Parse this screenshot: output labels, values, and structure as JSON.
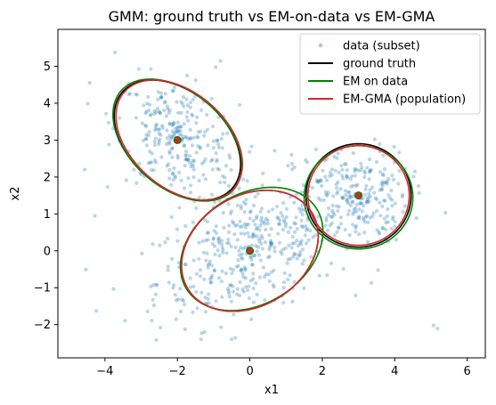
{
  "chart_data": {
    "type": "scatter",
    "title": "GMM: ground truth vs EM-on-data vs EM-GMA",
    "xlabel": "x1",
    "ylabel": "x2",
    "xlim": [
      -5.3,
      6.5
    ],
    "ylim": [
      -2.9,
      6.0
    ],
    "xticks": [
      -4,
      -2,
      0,
      2,
      4,
      6
    ],
    "yticks": [
      -2,
      -1,
      0,
      1,
      2,
      3,
      4,
      5
    ],
    "grid": false,
    "legend_position": "top-right",
    "point_color": "#1f77b4",
    "series": [
      {
        "name": "data (subset)",
        "kind": "scatter",
        "color": "#1f77b4",
        "clusters": [
          {
            "center": [
              0.0,
              0.0
            ],
            "sx": 1.3,
            "sy": 0.95,
            "rho": 0.45,
            "n": 420
          },
          {
            "center": [
              -2.0,
              3.0
            ],
            "sx": 0.85,
            "sy": 0.8,
            "rho": -0.35,
            "n": 270
          },
          {
            "center": [
              3.0,
              1.5
            ],
            "sx": 0.7,
            "sy": 0.65,
            "rho": 0.0,
            "n": 230
          }
        ],
        "scatter_background": 25
      },
      {
        "name": "ground truth",
        "kind": "ellipse",
        "color": "#000000",
        "ellipses": [
          {
            "center": [
              0.0,
              0.0
            ],
            "width": 4.0,
            "height": 3.0,
            "angle": 30
          },
          {
            "center": [
              -2.0,
              3.0
            ],
            "width": 4.0,
            "height": 2.6,
            "angle": -40
          },
          {
            "center": [
              3.0,
              1.5
            ],
            "width": 2.9,
            "height": 2.8,
            "angle": 0
          }
        ]
      },
      {
        "name": "EM on data",
        "kind": "ellipse",
        "color": "#008000",
        "ellipses": [
          {
            "center": [
              0.05,
              0.05
            ],
            "width": 4.2,
            "height": 3.0,
            "angle": 30
          },
          {
            "center": [
              -2.0,
              3.0
            ],
            "width": 4.1,
            "height": 2.6,
            "angle": -40
          },
          {
            "center": [
              3.0,
              1.45
            ],
            "width": 3.0,
            "height": 2.8,
            "angle": 0
          }
        ]
      },
      {
        "name": "EM-GMA (population)",
        "kind": "ellipse",
        "color": "#d62728",
        "ellipses": [
          {
            "center": [
              0.0,
              0.0
            ],
            "width": 4.0,
            "height": 3.0,
            "angle": 30
          },
          {
            "center": [
              -1.95,
              3.0
            ],
            "width": 4.0,
            "height": 2.6,
            "angle": -40
          },
          {
            "center": [
              3.0,
              1.5
            ],
            "width": 2.8,
            "height": 2.7,
            "angle": 0
          }
        ]
      }
    ],
    "centers": [
      {
        "x": 0.0,
        "y": 0.0
      },
      {
        "x": -2.0,
        "y": 3.0
      },
      {
        "x": 3.0,
        "y": 1.5
      }
    ],
    "center_marker_colors": [
      "#008000",
      "#d62728"
    ]
  }
}
